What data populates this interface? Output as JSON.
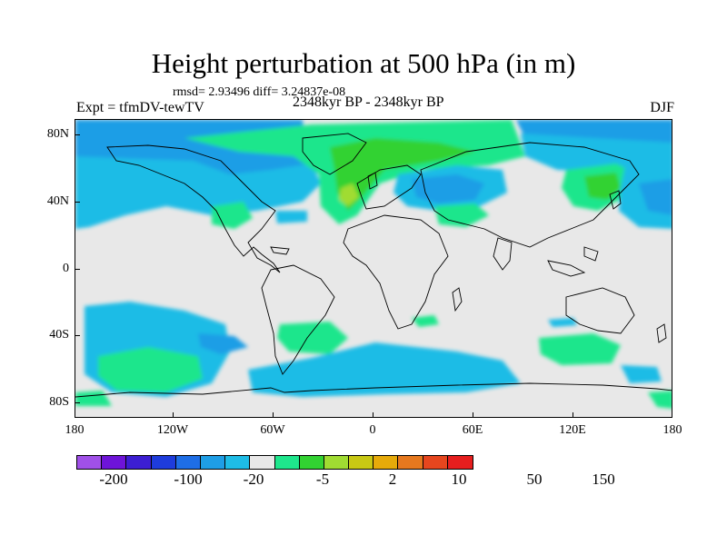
{
  "title": "Height perturbation at 500 hPa (in m)",
  "stats": "rmsd= 2.93496 diff= 3.24837e-08",
  "experiment": "Expt = tfmDV-tewTV",
  "period": "2348kyr BP - 2348kyr BP",
  "season": "DJF",
  "axes": {
    "y_labels": [
      "80N",
      "40N",
      "0",
      "40S",
      "80S"
    ],
    "x_labels": [
      "180",
      "120W",
      "60W",
      "0",
      "60E",
      "120E",
      "180"
    ]
  },
  "colorbar": {
    "colors": [
      "#a050e8",
      "#6e14d8",
      "#3c1ed2",
      "#1e3cdc",
      "#1e6ee6",
      "#1e9ee6",
      "#1ebce6",
      "#e8e8e8",
      "#1ee68c",
      "#32d232",
      "#a0dc32",
      "#c8c814",
      "#e6aa0a",
      "#e6781e",
      "#e6461e",
      "#e61e1e"
    ],
    "labels": [
      "-200",
      "-100",
      "-20",
      "-5",
      "2",
      "10",
      "50",
      "150"
    ]
  },
  "map_regions": {
    "neutral": "#e8e8e8",
    "light_blue": "#1ebce6",
    "mid_blue": "#1e9ee6",
    "blue": "#1e6ee6",
    "green": "#1ee68c",
    "bright_green": "#32d232",
    "yellow_green": "#a0dc32"
  }
}
